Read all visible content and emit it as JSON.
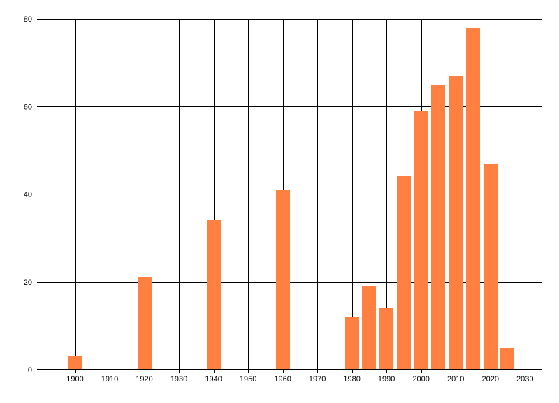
{
  "chart_data": {
    "type": "bar",
    "x": [
      1900,
      1920,
      1940,
      1960,
      1980,
      1985,
      1990,
      1995,
      2000,
      2005,
      2010,
      2015,
      2020,
      2025
    ],
    "values": [
      3,
      21,
      34,
      41,
      12,
      19,
      14,
      44,
      59,
      65,
      67,
      78,
      47,
      5
    ],
    "xlim": [
      1890,
      2035
    ],
    "ylim": [
      0,
      80
    ],
    "x_ticks": [
      1900,
      1910,
      1920,
      1930,
      1940,
      1950,
      1960,
      1970,
      1980,
      1990,
      2000,
      2010,
      2020,
      2030
    ],
    "y_ticks": [
      0,
      20,
      40,
      60,
      80
    ],
    "bar_color": "#ff8040",
    "grid": true,
    "title": "",
    "xlabel": "",
    "ylabel": ""
  }
}
